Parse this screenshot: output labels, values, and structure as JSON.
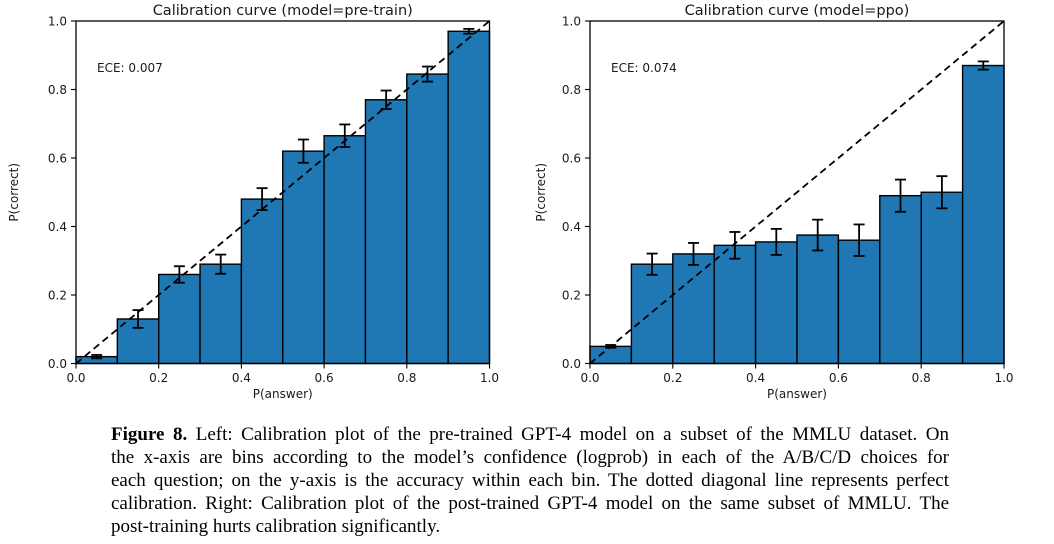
{
  "figure": {
    "caption_label": "Figure 8.",
    "caption_lines": [
      " Left: Calibration plot of the pre-trained GPT-4 model on a subset of the MMLU dataset. On",
      "the x-axis are bins according to the model’s confidence (logprob) in each of the A/B/C/D choices for",
      "each question; on the y-axis is the accuracy within each bin. The dotted diagonal line represents perfect",
      "calibration. Right: Calibration plot of the post-trained GPT-4 model on the same subset of MMLU. The",
      "post-training hurts calibration significantly."
    ]
  },
  "chart_data": [
    {
      "type": "bar",
      "title": "Calibration curve (model=pre-train)",
      "annotation": "ECE: 0.007",
      "xlabel": "P(answer)",
      "ylabel": "P(correct)",
      "xlim": [
        0.0,
        1.0
      ],
      "ylim": [
        0.0,
        1.0
      ],
      "grid": false,
      "legend": null,
      "xtick_labels": [
        "0.0",
        "0.2",
        "0.4",
        "0.6",
        "0.8",
        "1.0"
      ],
      "ytick_labels": [
        "0.0",
        "0.2",
        "0.4",
        "0.6",
        "0.8",
        "1.0"
      ],
      "bin_edges": [
        0.0,
        0.1,
        0.2,
        0.3,
        0.4,
        0.5,
        0.6,
        0.7,
        0.8,
        0.9,
        1.0
      ],
      "values": [
        0.02,
        0.13,
        0.26,
        0.29,
        0.48,
        0.62,
        0.665,
        0.77,
        0.845,
        0.97
      ],
      "errors": [
        0.005,
        0.026,
        0.024,
        0.028,
        0.032,
        0.034,
        0.033,
        0.027,
        0.022,
        0.007
      ],
      "diagonal_line": {
        "from": [
          0,
          0
        ],
        "to": [
          1,
          1
        ],
        "style": "dashed",
        "meaning": "perfect calibration"
      },
      "colors": {
        "bar_fill": "#1f77b4",
        "bar_edge": "#000000",
        "diagonal": "#000000",
        "error": "#000000"
      }
    },
    {
      "type": "bar",
      "title": "Calibration curve (model=ppo)",
      "annotation": "ECE: 0.074",
      "xlabel": "P(answer)",
      "ylabel": "P(correct)",
      "xlim": [
        0.0,
        1.0
      ],
      "ylim": [
        0.0,
        1.0
      ],
      "grid": false,
      "legend": null,
      "xtick_labels": [
        "0.0",
        "0.2",
        "0.4",
        "0.6",
        "0.8",
        "1.0"
      ],
      "ytick_labels": [
        "0.0",
        "0.2",
        "0.4",
        "0.6",
        "0.8",
        "1.0"
      ],
      "bin_edges": [
        0.0,
        0.1,
        0.2,
        0.3,
        0.4,
        0.5,
        0.6,
        0.7,
        0.8,
        0.9,
        1.0
      ],
      "values": [
        0.05,
        0.29,
        0.32,
        0.345,
        0.355,
        0.375,
        0.36,
        0.49,
        0.5,
        0.87
      ],
      "errors": [
        0.004,
        0.031,
        0.032,
        0.039,
        0.038,
        0.045,
        0.046,
        0.047,
        0.047,
        0.012
      ],
      "diagonal_line": {
        "from": [
          0,
          0
        ],
        "to": [
          1,
          1
        ],
        "style": "dashed",
        "meaning": "perfect calibration"
      },
      "colors": {
        "bar_fill": "#1f77b4",
        "bar_edge": "#000000",
        "diagonal": "#000000",
        "error": "#000000"
      }
    }
  ]
}
